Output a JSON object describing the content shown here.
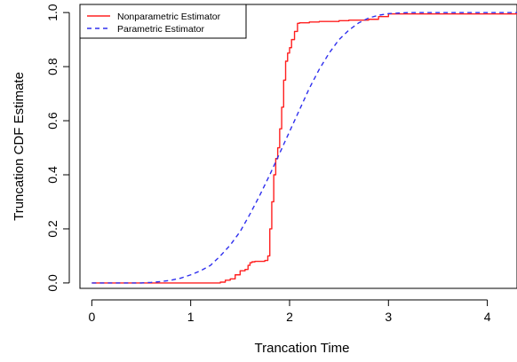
{
  "chart_data": {
    "type": "line",
    "xlabel": "Trancation Time",
    "ylabel": "Truncation CDF Estimate",
    "xlim": [
      -0.12,
      4.3
    ],
    "ylim": [
      -0.02,
      1.03
    ],
    "xticks": [
      0,
      1,
      2,
      3,
      4
    ],
    "yticks": [
      0.0,
      0.2,
      0.4,
      0.6,
      0.8,
      1.0
    ],
    "xtick_labels": [
      "0",
      "1",
      "2",
      "3",
      "4"
    ],
    "ytick_labels": [
      "0.0",
      "0.2",
      "0.4",
      "0.6",
      "0.8",
      "1.0"
    ],
    "grid": false,
    "legend_position": "top-left",
    "series": [
      {
        "name": "Nonparametric Estimator",
        "color": "#ff2020",
        "style": "solid",
        "step": true,
        "x": [
          0,
          1.3,
          1.35,
          1.4,
          1.45,
          1.5,
          1.55,
          1.58,
          1.6,
          1.62,
          1.65,
          1.75,
          1.78,
          1.8,
          1.82,
          1.84,
          1.86,
          1.88,
          1.9,
          1.92,
          1.94,
          1.96,
          1.98,
          2.0,
          2.02,
          2.05,
          2.08,
          2.1,
          2.2,
          2.3,
          2.5,
          2.6,
          2.8,
          2.9,
          3.0,
          4.3
        ],
        "y": [
          0.0,
          0.003,
          0.01,
          0.015,
          0.03,
          0.045,
          0.05,
          0.065,
          0.075,
          0.078,
          0.08,
          0.083,
          0.1,
          0.2,
          0.3,
          0.4,
          0.46,
          0.5,
          0.57,
          0.65,
          0.75,
          0.82,
          0.85,
          0.87,
          0.9,
          0.93,
          0.96,
          0.962,
          0.965,
          0.967,
          0.97,
          0.972,
          0.975,
          0.985,
          0.995,
          0.995
        ]
      },
      {
        "name": "Parametric Estimator",
        "color": "#3030ee",
        "style": "dashed",
        "step": false,
        "x": [
          0,
          0.3,
          0.5,
          0.6,
          0.7,
          0.8,
          0.9,
          1.0,
          1.1,
          1.2,
          1.3,
          1.4,
          1.5,
          1.6,
          1.7,
          1.8,
          1.9,
          2.0,
          2.1,
          2.2,
          2.3,
          2.4,
          2.5,
          2.6,
          2.7,
          2.8,
          2.9,
          3.0,
          3.1,
          3.2,
          3.4,
          3.6,
          3.8,
          4.0,
          4.3
        ],
        "y": [
          0.0,
          0.0,
          0.0,
          0.002,
          0.005,
          0.01,
          0.018,
          0.03,
          0.045,
          0.065,
          0.1,
          0.14,
          0.19,
          0.255,
          0.325,
          0.4,
          0.48,
          0.56,
          0.64,
          0.72,
          0.79,
          0.85,
          0.9,
          0.935,
          0.962,
          0.98,
          0.99,
          0.996,
          0.998,
          1.0,
          1.0,
          1.0,
          1.0,
          1.0,
          1.0
        ]
      }
    ]
  }
}
